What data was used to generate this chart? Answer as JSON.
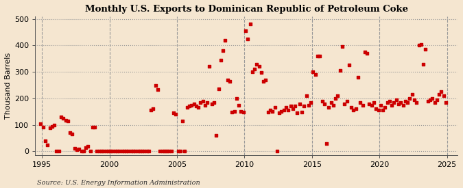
{
  "title": "Monthly U.S. Exports to Dominican Republic of Petroleum Coke",
  "ylabel": "Thousand Barrels",
  "source": "Source: U.S. Energy Information Administration",
  "background_color": "#f5e6d0",
  "plot_bg_color": "#f5e6d0",
  "dot_color": "#cc0000",
  "xlim": [
    1994.5,
    2025.8
  ],
  "ylim": [
    -15,
    510
  ],
  "yticks": [
    0,
    100,
    200,
    300,
    400,
    500
  ],
  "xticks": [
    1995,
    2000,
    2005,
    2010,
    2015,
    2020,
    2025
  ],
  "data": [
    [
      1994.917,
      103
    ],
    [
      1995.083,
      91
    ],
    [
      1995.25,
      40
    ],
    [
      1995.417,
      25
    ],
    [
      1995.583,
      88
    ],
    [
      1995.75,
      93
    ],
    [
      1995.917,
      100
    ],
    [
      1996.083,
      0
    ],
    [
      1996.25,
      0
    ],
    [
      1996.417,
      130
    ],
    [
      1996.583,
      125
    ],
    [
      1996.75,
      117
    ],
    [
      1996.917,
      115
    ],
    [
      1997.083,
      70
    ],
    [
      1997.25,
      65
    ],
    [
      1997.417,
      10
    ],
    [
      1997.583,
      5
    ],
    [
      1997.75,
      8
    ],
    [
      1997.917,
      0
    ],
    [
      1998.083,
      0
    ],
    [
      1998.25,
      13
    ],
    [
      1998.417,
      18
    ],
    [
      1998.583,
      0
    ],
    [
      1998.75,
      90
    ],
    [
      1998.917,
      92
    ],
    [
      1999.083,
      0
    ],
    [
      1999.25,
      0
    ],
    [
      1999.417,
      0
    ],
    [
      1999.583,
      0
    ],
    [
      1999.75,
      0
    ],
    [
      1999.917,
      0
    ],
    [
      2000.083,
      0
    ],
    [
      2000.25,
      0
    ],
    [
      2000.417,
      0
    ],
    [
      2000.583,
      0
    ],
    [
      2000.75,
      0
    ],
    [
      2000.917,
      0
    ],
    [
      2001.083,
      0
    ],
    [
      2001.25,
      0
    ],
    [
      2001.417,
      0
    ],
    [
      2001.583,
      0
    ],
    [
      2001.75,
      0
    ],
    [
      2001.917,
      0
    ],
    [
      2002.083,
      0
    ],
    [
      2002.25,
      0
    ],
    [
      2002.417,
      0
    ],
    [
      2002.583,
      0
    ],
    [
      2002.75,
      0
    ],
    [
      2002.917,
      0
    ],
    [
      2003.083,
      155
    ],
    [
      2003.25,
      160
    ],
    [
      2003.417,
      248
    ],
    [
      2003.583,
      233
    ],
    [
      2003.75,
      0
    ],
    [
      2003.917,
      0
    ],
    [
      2004.083,
      0
    ],
    [
      2004.25,
      0
    ],
    [
      2004.417,
      0
    ],
    [
      2004.583,
      0
    ],
    [
      2004.75,
      145
    ],
    [
      2004.917,
      140
    ],
    [
      2005.083,
      0
    ],
    [
      2005.25,
      0
    ],
    [
      2005.417,
      115
    ],
    [
      2005.583,
      0
    ],
    [
      2005.75,
      165
    ],
    [
      2005.917,
      170
    ],
    [
      2006.083,
      175
    ],
    [
      2006.25,
      180
    ],
    [
      2006.417,
      170
    ],
    [
      2006.583,
      165
    ],
    [
      2006.75,
      185
    ],
    [
      2006.917,
      190
    ],
    [
      2007.083,
      175
    ],
    [
      2007.25,
      185
    ],
    [
      2007.417,
      320
    ],
    [
      2007.583,
      180
    ],
    [
      2007.75,
      185
    ],
    [
      2007.917,
      60
    ],
    [
      2008.083,
      235
    ],
    [
      2008.25,
      345
    ],
    [
      2008.417,
      380
    ],
    [
      2008.583,
      420
    ],
    [
      2008.75,
      270
    ],
    [
      2008.917,
      265
    ],
    [
      2009.083,
      148
    ],
    [
      2009.25,
      150
    ],
    [
      2009.417,
      200
    ],
    [
      2009.583,
      175
    ],
    [
      2009.75,
      150
    ],
    [
      2009.917,
      148
    ],
    [
      2010.083,
      455
    ],
    [
      2010.25,
      425
    ],
    [
      2010.417,
      480
    ],
    [
      2010.583,
      300
    ],
    [
      2010.75,
      310
    ],
    [
      2010.917,
      330
    ],
    [
      2011.083,
      320
    ],
    [
      2011.25,
      298
    ],
    [
      2011.417,
      265
    ],
    [
      2011.583,
      270
    ],
    [
      2011.75,
      148
    ],
    [
      2011.917,
      155
    ],
    [
      2012.083,
      150
    ],
    [
      2012.25,
      165
    ],
    [
      2012.417,
      0
    ],
    [
      2012.583,
      145
    ],
    [
      2012.75,
      150
    ],
    [
      2012.917,
      155
    ],
    [
      2013.083,
      165
    ],
    [
      2013.25,
      155
    ],
    [
      2013.417,
      170
    ],
    [
      2013.583,
      160
    ],
    [
      2013.75,
      170
    ],
    [
      2013.917,
      145
    ],
    [
      2014.083,
      180
    ],
    [
      2014.25,
      148
    ],
    [
      2014.417,
      170
    ],
    [
      2014.583,
      210
    ],
    [
      2014.75,
      175
    ],
    [
      2014.917,
      185
    ],
    [
      2015.083,
      300
    ],
    [
      2015.25,
      290
    ],
    [
      2015.417,
      360
    ],
    [
      2015.583,
      360
    ],
    [
      2015.75,
      190
    ],
    [
      2015.917,
      180
    ],
    [
      2016.083,
      30
    ],
    [
      2016.25,
      165
    ],
    [
      2016.417,
      185
    ],
    [
      2016.583,
      175
    ],
    [
      2016.75,
      200
    ],
    [
      2016.917,
      210
    ],
    [
      2017.083,
      305
    ],
    [
      2017.25,
      395
    ],
    [
      2017.417,
      180
    ],
    [
      2017.583,
      190
    ],
    [
      2017.75,
      325
    ],
    [
      2017.917,
      165
    ],
    [
      2018.083,
      155
    ],
    [
      2018.25,
      160
    ],
    [
      2018.417,
      280
    ],
    [
      2018.583,
      185
    ],
    [
      2018.75,
      175
    ],
    [
      2018.917,
      375
    ],
    [
      2019.083,
      370
    ],
    [
      2019.25,
      180
    ],
    [
      2019.417,
      175
    ],
    [
      2019.583,
      185
    ],
    [
      2019.75,
      160
    ],
    [
      2019.917,
      155
    ],
    [
      2020.083,
      175
    ],
    [
      2020.25,
      155
    ],
    [
      2020.417,
      165
    ],
    [
      2020.583,
      185
    ],
    [
      2020.75,
      190
    ],
    [
      2020.917,
      175
    ],
    [
      2021.083,
      185
    ],
    [
      2021.25,
      195
    ],
    [
      2021.417,
      180
    ],
    [
      2021.583,
      185
    ],
    [
      2021.75,
      175
    ],
    [
      2021.917,
      190
    ],
    [
      2022.083,
      185
    ],
    [
      2022.25,
      200
    ],
    [
      2022.417,
      215
    ],
    [
      2022.583,
      195
    ],
    [
      2022.75,
      185
    ],
    [
      2022.917,
      400
    ],
    [
      2023.083,
      405
    ],
    [
      2023.25,
      330
    ],
    [
      2023.417,
      385
    ],
    [
      2023.583,
      190
    ],
    [
      2023.75,
      195
    ],
    [
      2023.917,
      200
    ],
    [
      2024.083,
      185
    ],
    [
      2024.25,
      195
    ],
    [
      2024.417,
      215
    ],
    [
      2024.583,
      225
    ],
    [
      2024.75,
      210
    ],
    [
      2024.917,
      185
    ]
  ]
}
